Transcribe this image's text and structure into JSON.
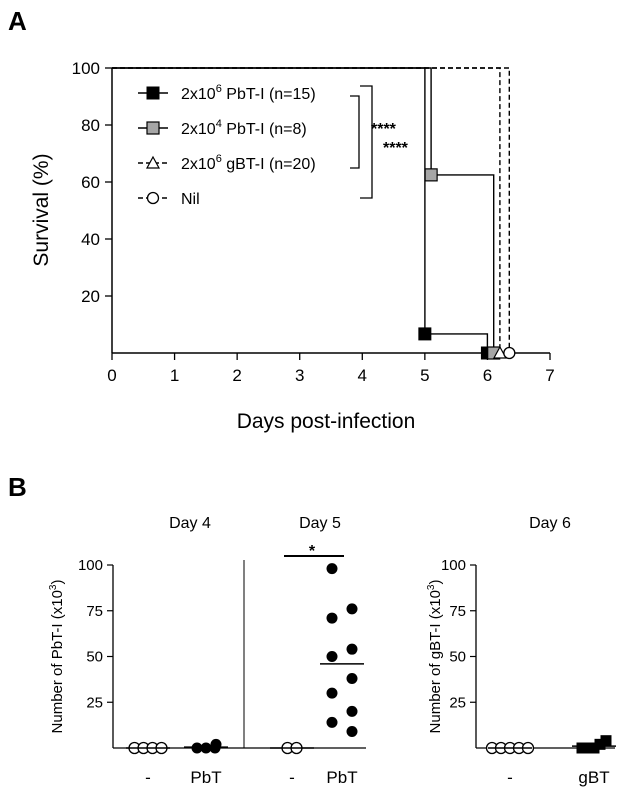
{
  "panels": {
    "a": "A",
    "b": "B"
  },
  "chart_data": [
    {
      "type": "line",
      "subtype": "kaplan-meier survival",
      "xlabel": "Days post-infection",
      "ylabel": "Survival (%)",
      "xlim": [
        0,
        7
      ],
      "ylim": [
        0,
        100
      ],
      "xticks": [
        "0",
        "1",
        "2",
        "3",
        "4",
        "5",
        "6",
        "7"
      ],
      "yticks": [
        "20",
        "40",
        "60",
        "80",
        "100"
      ],
      "legend_position": "top-left",
      "series": [
        {
          "name_main": "2x10",
          "name_sup": "6",
          "name_rest": " PbT-I (n=15)",
          "style": "solid",
          "marker": "filled-square",
          "color": "#000000",
          "steps": [
            [
              0,
              100
            ],
            [
              5,
              100
            ],
            [
              5,
              6.7
            ],
            [
              6,
              6.7
            ],
            [
              6,
              0
            ]
          ],
          "markers": [
            [
              5,
              6.7
            ],
            [
              6,
              0
            ]
          ]
        },
        {
          "name_main": "2x10",
          "name_sup": "4",
          "name_rest": " PbT-I (n=8)",
          "style": "solid",
          "marker": "grey-square",
          "color": "#a6a6a6",
          "steps": [
            [
              0,
              100
            ],
            [
              5.1,
              100
            ],
            [
              5.1,
              62.5
            ],
            [
              6.1,
              62.5
            ],
            [
              6.1,
              0
            ]
          ],
          "markers": [
            [
              5.1,
              62.5
            ],
            [
              6.1,
              0
            ]
          ]
        },
        {
          "name_main": "2x10",
          "name_sup": "6",
          "name_rest": " gBT-I (n=20)",
          "style": "dashed",
          "marker": "open-triangle",
          "color": "#000000",
          "steps": [
            [
              0,
              100
            ],
            [
              6.2,
              100
            ],
            [
              6.2,
              0
            ]
          ],
          "markers": [
            [
              6.2,
              0
            ]
          ]
        },
        {
          "name_main": "Nil",
          "name_sup": "",
          "name_rest": "",
          "style": "dashed",
          "marker": "open-circle",
          "color": "#000000",
          "steps": [
            [
              0,
              100
            ],
            [
              6.35,
              100
            ],
            [
              6.35,
              0
            ]
          ],
          "markers": [
            [
              6.35,
              0
            ]
          ]
        }
      ],
      "annotations": [
        "****",
        "****"
      ]
    },
    {
      "type": "scatter",
      "ylabel_main": "Number of PbT-I (x10",
      "ylabel_sup": "3",
      "ylabel_end": ")",
      "ylim": [
        0,
        100
      ],
      "yticks": [
        "25",
        "50",
        "75",
        "100"
      ],
      "groups": [
        {
          "title": "Day 4",
          "categories": [
            {
              "label": "-",
              "marker": "open-circle",
              "values": [
                0,
                0,
                0,
                0
              ],
              "mean": 0
            },
            {
              "label": "PbT",
              "marker": "filled-circle",
              "values": [
                0,
                0,
                0,
                2
              ],
              "mean": 0.5
            }
          ]
        },
        {
          "title": "Day 5",
          "categories": [
            {
              "label": "-",
              "marker": "open-circle",
              "values": [
                0,
                0
              ],
              "mean": 0
            },
            {
              "label": "PbT",
              "marker": "filled-circle",
              "values": [
                98,
                76,
                71,
                54,
                50,
                38,
                30,
                20,
                14,
                9
              ],
              "mean": 46
            }
          ],
          "annotation": "*"
        }
      ]
    },
    {
      "type": "scatter",
      "ylabel_main": "Number of gBT-I (x10",
      "ylabel_sup": "3",
      "ylabel_end": ")",
      "ylim": [
        0,
        100
      ],
      "yticks": [
        "25",
        "50",
        "75",
        "100"
      ],
      "groups": [
        {
          "title": "Day 6",
          "categories": [
            {
              "label": "-",
              "marker": "open-circle",
              "values": [
                0,
                0,
                0,
                0,
                0
              ],
              "mean": 0
            },
            {
              "label": "gBT",
              "marker": "filled-square",
              "values": [
                0,
                0,
                0,
                2,
                4
              ],
              "mean": 1
            }
          ]
        }
      ]
    }
  ]
}
